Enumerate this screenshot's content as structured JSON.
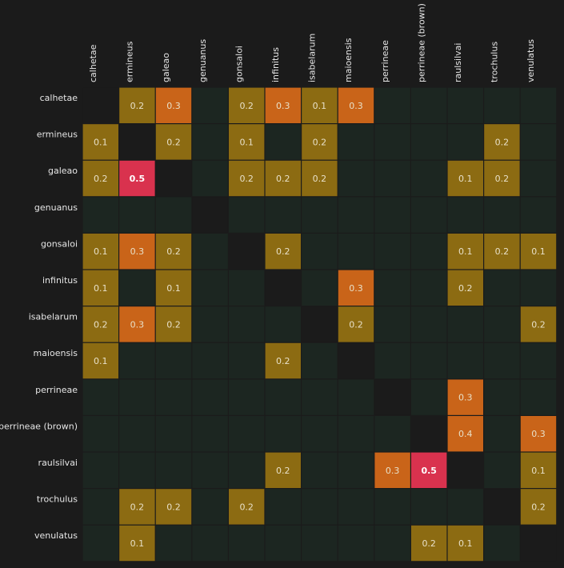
{
  "chart_data": {
    "type": "heatmap",
    "title": "",
    "xlabel": "",
    "ylabel": "",
    "rows": [
      "calhetae",
      "ermineus",
      "galeao",
      "genuanus",
      "gonsaloi",
      "infinitus",
      "isabelarum",
      "maioensis",
      "perrineae",
      "perrineae (brown)",
      "raulsilvai",
      "trochulus",
      "venulatus"
    ],
    "columns": [
      "calhetae",
      "ermineus",
      "galeao",
      "genuanus",
      "gonsaloi",
      "infinitus",
      "isabelarum",
      "maioensis",
      "perrineae",
      "perrineae (brown)",
      "raulsilvai",
      "trochulus",
      "venulatus"
    ],
    "values": [
      [
        null,
        0.2,
        0.3,
        0,
        0.2,
        0.3,
        0.1,
        0.3,
        0,
        0,
        0,
        0,
        0
      ],
      [
        0.1,
        null,
        0.2,
        0,
        0.1,
        0,
        0.2,
        0,
        0,
        0,
        0,
        0.2,
        0
      ],
      [
        0.2,
        0.5,
        null,
        0,
        0.2,
        0.2,
        0.2,
        0,
        0,
        0,
        0.1,
        0.2,
        0
      ],
      [
        0,
        0,
        0,
        null,
        0,
        0,
        0,
        0,
        0,
        0,
        0,
        0,
        0
      ],
      [
        0.1,
        0.3,
        0.2,
        0,
        null,
        0.2,
        0,
        0,
        0,
        0,
        0.1,
        0.2,
        0.1
      ],
      [
        0.1,
        0,
        0.1,
        0,
        0,
        null,
        0,
        0.3,
        0,
        0,
        0.2,
        0,
        0
      ],
      [
        0.2,
        0.3,
        0.2,
        0,
        0,
        0,
        null,
        0.2,
        0,
        0,
        0,
        0,
        0.2
      ],
      [
        0.1,
        0,
        0,
        0,
        0,
        0.2,
        0,
        null,
        0,
        0,
        0,
        0,
        0
      ],
      [
        0,
        0,
        0,
        0,
        0,
        0,
        0,
        0,
        null,
        0,
        0.3,
        0,
        0
      ],
      [
        0,
        0,
        0,
        0,
        0,
        0,
        0,
        0,
        0,
        null,
        0.4,
        0,
        0.3
      ],
      [
        0,
        0,
        0,
        0,
        0,
        0.2,
        0,
        0,
        0.3,
        0.5,
        null,
        0,
        0.1
      ],
      [
        0,
        0.2,
        0.2,
        0,
        0.2,
        0,
        0,
        0,
        0,
        0,
        0,
        null,
        0.2
      ],
      [
        0,
        0.1,
        0,
        0,
        0,
        0,
        0,
        0,
        0,
        0.2,
        0.1,
        0,
        null
      ]
    ],
    "colors": {
      "background": "#1b1b1b",
      "empty": "#1c2621",
      "diagonal": "#1b1b1b",
      "low": "#8c6b12",
      "mid": "#c96419",
      "high": "#d9324e",
      "label_low": "#e8e0c8",
      "label_high": "#ffffff"
    }
  }
}
